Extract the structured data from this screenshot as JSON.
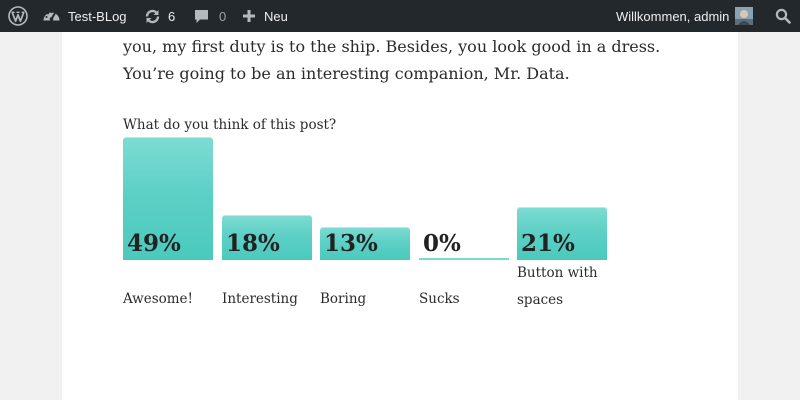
{
  "adminbar": {
    "site_name": "Test-BLog",
    "updates_count": "6",
    "comments_count": "0",
    "new_label": "Neu",
    "greeting": "Willkommen, admin",
    "icons": [
      "wordpress-logo-icon",
      "dashboard-icon",
      "updates-icon",
      "comments-icon",
      "plus-icon",
      "avatar",
      "search-icon"
    ]
  },
  "post": {
    "line1": "you, my first duty is to the ship. Besides, you look good in a dress.",
    "line2": "You’re going to be an interesting companion, Mr. Data."
  },
  "poll": {
    "question": "What do you think of this post?",
    "accent_color": "#5ed0c6",
    "options": [
      {
        "label": "Awesome!",
        "percent": "49%",
        "value": 49
      },
      {
        "label": "Interesting",
        "percent": "18%",
        "value": 18
      },
      {
        "label": "Boring",
        "percent": "13%",
        "value": 13
      },
      {
        "label": "Sucks",
        "percent": "0%",
        "value": 0
      },
      {
        "label": "Button with spaces",
        "percent": "21%",
        "value": 21
      }
    ]
  }
}
